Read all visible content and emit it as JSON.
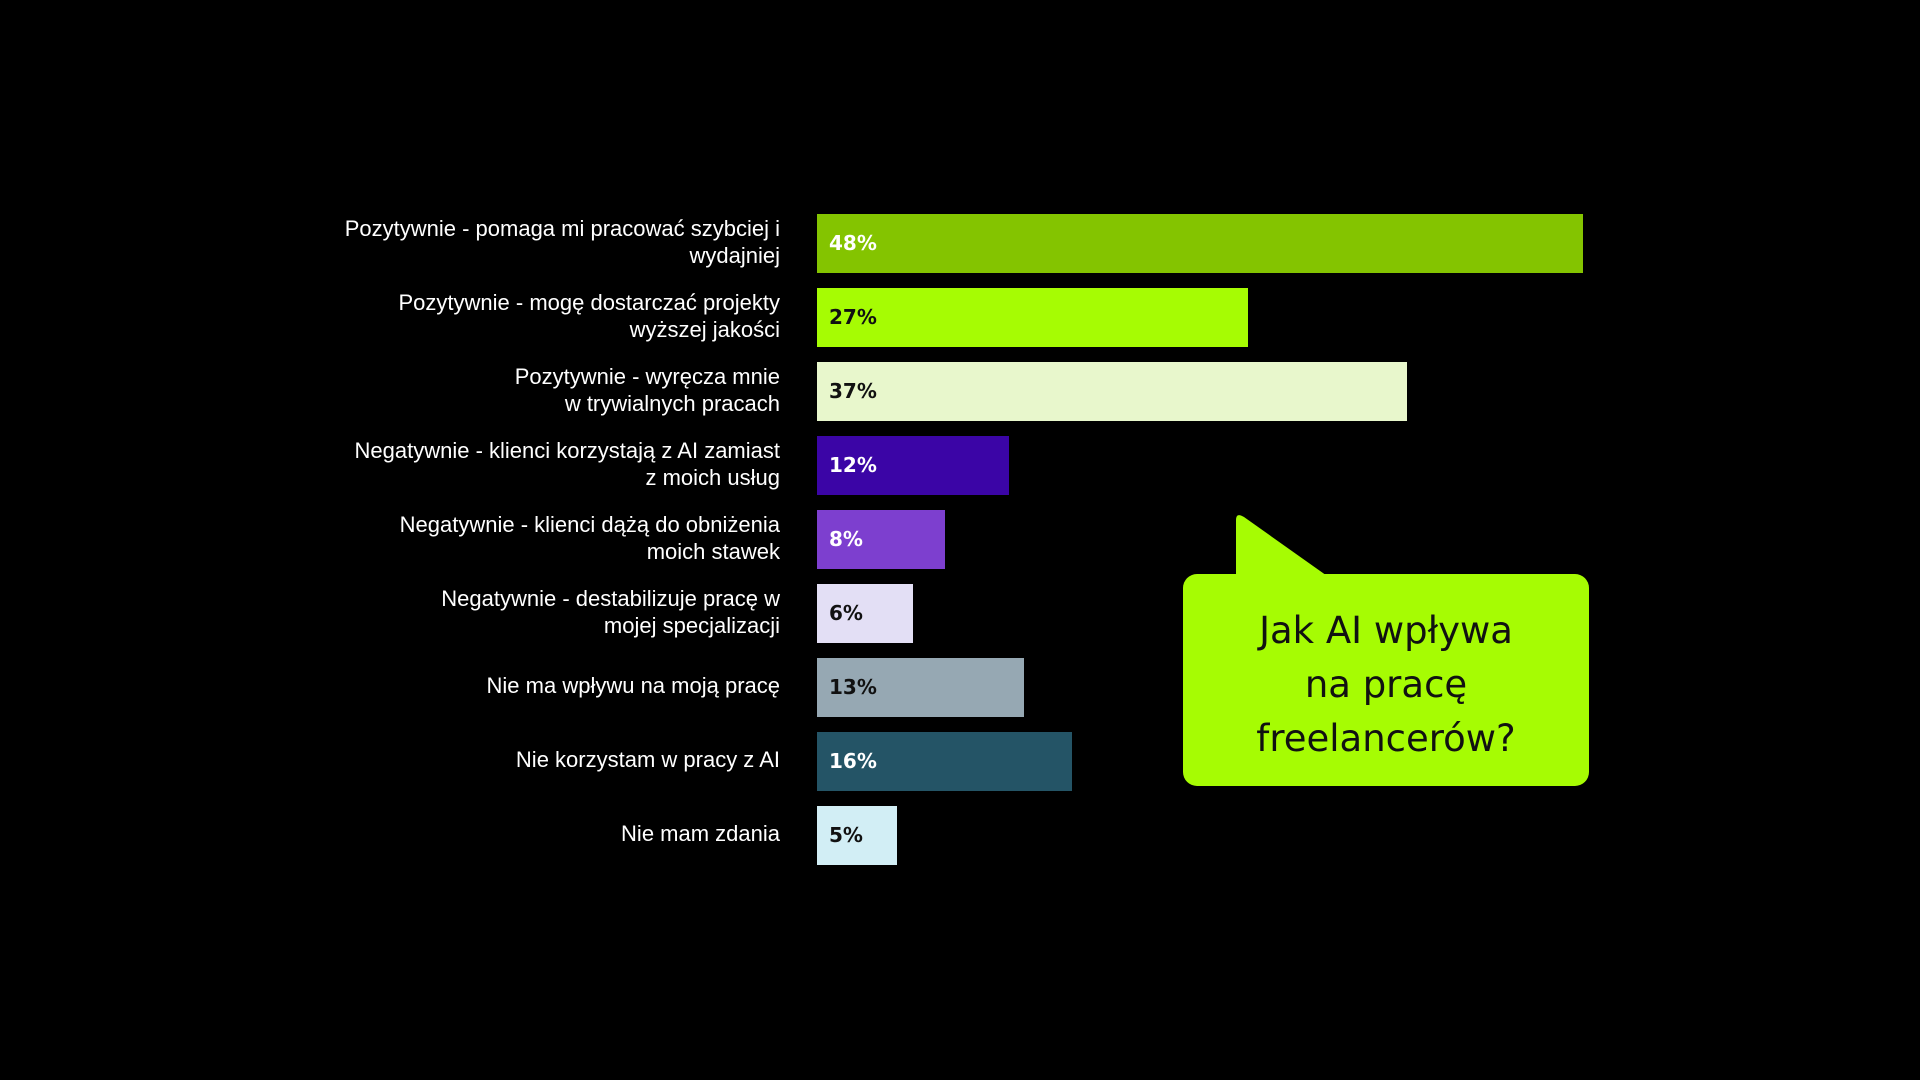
{
  "chart_data": {
    "type": "bar",
    "orientation": "horizontal",
    "categories": [
      "Pozytywnie - pomaga mi pracować szybciej i\nwydajniej",
      "Pozytywnie  - mogę dostarczać projekty\nwyższej jakości",
      "Pozytywnie - wyręcza mnie\nw trywialnych pracach",
      "Negatywnie - klienci korzystają z AI zamiast\nz moich usług",
      "Negatywnie - klienci dążą do obniżenia\nmoich stawek",
      "Negatywnie - destabilizuje pracę w\nmojej specjalizacji",
      "Nie ma wpływu na moją pracę",
      "Nie korzystam w pracy z AI",
      "Nie mam zdania"
    ],
    "values": [
      48,
      27,
      37,
      12,
      8,
      6,
      13,
      16,
      5
    ],
    "value_labels": [
      "48%",
      "27%",
      "37%",
      "12%",
      "8%",
      "6%",
      "13%",
      "16%",
      "5%"
    ],
    "bar_colors": [
      "#84c400",
      "#a6fc03",
      "#e8f7cc",
      "#3b05a6",
      "#7d3fcf",
      "#e3dff5",
      "#96a8b3",
      "#245466",
      "#d2eef5"
    ],
    "label_colors": [
      "#ffffff",
      "#111111",
      "#111111",
      "#ffffff",
      "#ffffff",
      "#111111",
      "#111111",
      "#ffffff",
      "#111111"
    ],
    "title": "",
    "xlabel": "",
    "ylabel": "",
    "xlim": [
      0,
      48
    ],
    "grid": false,
    "legend": "none"
  },
  "callout": {
    "text": "Jak AI wpływa\nna pracę\nfreelancerów?",
    "color": "#a6fc03"
  },
  "background": "#000000"
}
